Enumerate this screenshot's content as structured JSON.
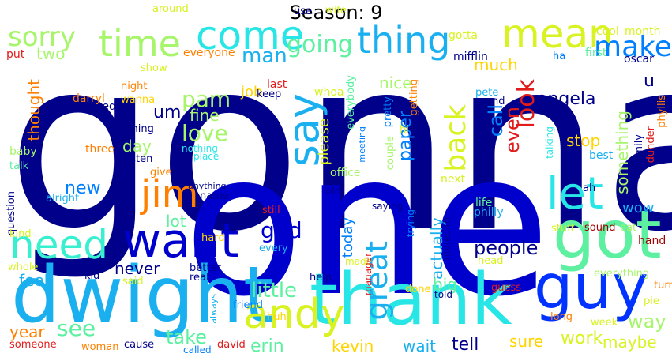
{
  "title": "Season: 9",
  "colors": {
    "navy": "#00008b",
    "blue": "#0000cd",
    "royal": "#0033ff",
    "azure": "#0080ff",
    "sky": "#1ab0f0",
    "cyan": "#29e6e6",
    "aqua": "#38f0d0",
    "mint": "#5cf0a0",
    "lime": "#a6f56b",
    "yellow": "#d9f221",
    "gold": "#ffd400",
    "orange": "#ff8000",
    "red": "#e21b1b",
    "darkred": "#a30000"
  },
  "words": [
    {
      "text": "gonna",
      "c": "navy"
    },
    {
      "text": "one",
      "c": "blue"
    },
    {
      "text": "dwight",
      "c": "sky"
    },
    {
      "text": "thank",
      "c": "cyan"
    },
    {
      "text": "got",
      "c": "mint"
    },
    {
      "text": "guy",
      "c": "royal"
    },
    {
      "text": "want",
      "c": "blue"
    },
    {
      "text": "andy",
      "c": "yellow"
    },
    {
      "text": "need",
      "c": "aqua"
    },
    {
      "text": "jim",
      "c": "orange"
    },
    {
      "text": "time",
      "c": "lime"
    },
    {
      "text": "come",
      "c": "cyan"
    },
    {
      "text": "mean",
      "c": "yellow"
    },
    {
      "text": "thing",
      "c": "sky"
    },
    {
      "text": "let",
      "c": "cyan"
    },
    {
      "text": "say",
      "c": "sky"
    },
    {
      "text": "sorry",
      "c": "lime"
    },
    {
      "text": "make",
      "c": "azure"
    },
    {
      "text": "great",
      "c": "sky"
    },
    {
      "text": "back",
      "c": "yellow"
    },
    {
      "text": "look",
      "c": "red"
    },
    {
      "text": "going",
      "c": "mint"
    },
    {
      "text": "pam",
      "c": "lime"
    },
    {
      "text": "love",
      "c": "lime"
    },
    {
      "text": "man",
      "c": "sky"
    },
    {
      "text": "god",
      "c": "blue"
    },
    {
      "text": "see",
      "c": "mint"
    },
    {
      "text": "little",
      "c": "mint"
    },
    {
      "text": "way",
      "c": "lime"
    },
    {
      "text": "people",
      "c": "navy"
    },
    {
      "text": "take",
      "c": "mint"
    },
    {
      "text": "work",
      "c": "yellow"
    },
    {
      "text": "kevin",
      "c": "gold"
    },
    {
      "text": "wait",
      "c": "sky"
    },
    {
      "text": "tell",
      "c": "navy"
    },
    {
      "text": "sure",
      "c": "gold"
    },
    {
      "text": "maybe",
      "c": "yellow"
    },
    {
      "text": "erin",
      "c": "mint"
    },
    {
      "text": "year",
      "c": "orange"
    },
    {
      "text": "feel",
      "c": "sky"
    },
    {
      "text": "never",
      "c": "navy"
    },
    {
      "text": "lot",
      "c": "mint"
    },
    {
      "text": "new",
      "c": "azure"
    },
    {
      "text": "day",
      "c": "lime"
    },
    {
      "text": "um",
      "c": "navy"
    },
    {
      "text": "fine",
      "c": "lime"
    },
    {
      "text": "call",
      "c": "azure"
    },
    {
      "text": "even",
      "c": "red"
    },
    {
      "text": "angela",
      "c": "navy"
    },
    {
      "text": "paper",
      "c": "azure"
    },
    {
      "text": "nice",
      "c": "lime"
    },
    {
      "text": "much",
      "c": "gold"
    },
    {
      "text": "two",
      "c": "lime"
    },
    {
      "text": "thought",
      "c": "orange"
    },
    {
      "text": "job",
      "c": "gold"
    },
    {
      "text": "u",
      "c": "navy"
    },
    {
      "text": "something",
      "c": "lime"
    },
    {
      "text": "stop",
      "c": "gold"
    },
    {
      "text": "wow",
      "c": "sky"
    },
    {
      "text": "big",
      "c": "mint"
    },
    {
      "text": "actually",
      "c": "sky"
    },
    {
      "text": "today",
      "c": "azure"
    },
    {
      "text": "please",
      "c": "yellow"
    },
    {
      "text": "darryl",
      "c": "orange"
    },
    {
      "text": "wanted",
      "c": "navy"
    },
    {
      "text": "three",
      "c": "orange"
    },
    {
      "text": "baby",
      "c": "lime"
    },
    {
      "text": "coming",
      "c": "navy"
    },
    {
      "text": "night",
      "c": "orange"
    },
    {
      "text": "wanna",
      "c": "gold"
    },
    {
      "text": "keep",
      "c": "navy"
    },
    {
      "text": "last",
      "c": "red"
    },
    {
      "text": "everyone",
      "c": "orange"
    },
    {
      "text": "put",
      "c": "red"
    },
    {
      "text": "show",
      "c": "yellow"
    },
    {
      "text": "around",
      "c": "yellow"
    },
    {
      "text": "use",
      "c": "navy"
    },
    {
      "text": "wife",
      "c": "yellow"
    },
    {
      "text": "gotta",
      "c": "yellow"
    },
    {
      "text": "mifflin",
      "c": "navy"
    },
    {
      "text": "first",
      "c": "mint"
    },
    {
      "text": "cool",
      "c": "yellow"
    },
    {
      "text": "month",
      "c": "yellow"
    },
    {
      "text": "oscar",
      "c": "navy"
    },
    {
      "text": "ha",
      "c": "azure"
    },
    {
      "text": "phyllis",
      "c": "orange"
    },
    {
      "text": "dunder",
      "c": "red"
    },
    {
      "text": "family",
      "c": "navy"
    },
    {
      "text": "best",
      "c": "sky"
    },
    {
      "text": "ah",
      "c": "navy"
    },
    {
      "text": "pete",
      "c": "sky"
    },
    {
      "text": "end",
      "c": "navy"
    },
    {
      "text": "getting",
      "c": "orange"
    },
    {
      "text": "pretty",
      "c": "azure"
    },
    {
      "text": "whoa",
      "c": "yellow"
    },
    {
      "text": "everybody",
      "c": "mint"
    },
    {
      "text": "hi",
      "c": "yellow"
    },
    {
      "text": "couple",
      "c": "lime"
    },
    {
      "text": "meeting",
      "c": "azure"
    },
    {
      "text": "talking",
      "c": "cyan"
    },
    {
      "text": "office",
      "c": "lime"
    },
    {
      "text": "next",
      "c": "yellow"
    },
    {
      "text": "life",
      "c": "mint"
    },
    {
      "text": "philly",
      "c": "sky"
    },
    {
      "text": "stuff",
      "c": "yellow"
    },
    {
      "text": "sound",
      "c": "darkred"
    },
    {
      "text": "eat",
      "c": "lime"
    },
    {
      "text": "hand",
      "c": "darkred"
    },
    {
      "text": "listen",
      "c": "navy"
    },
    {
      "text": "give",
      "c": "orange"
    },
    {
      "text": "nothing",
      "c": "cyan"
    },
    {
      "text": "place",
      "c": "cyan"
    },
    {
      "text": "talk",
      "c": "mint"
    },
    {
      "text": "question",
      "c": "navy"
    },
    {
      "text": "alright",
      "c": "sky"
    },
    {
      "text": "kind",
      "c": "yellow"
    },
    {
      "text": "whole",
      "c": "yellow"
    },
    {
      "text": "kid",
      "c": "navy"
    },
    {
      "text": "said",
      "c": "yellow"
    },
    {
      "text": "anything",
      "c": "navy"
    },
    {
      "text": "name",
      "c": "navy"
    },
    {
      "text": "hard",
      "c": "gold"
    },
    {
      "text": "better",
      "c": "navy"
    },
    {
      "text": "real",
      "c": "navy"
    },
    {
      "text": "friend",
      "c": "azure"
    },
    {
      "text": "huh",
      "c": "gold"
    },
    {
      "text": "help",
      "c": "navy"
    },
    {
      "text": "old",
      "c": "navy"
    },
    {
      "text": "still",
      "c": "red"
    },
    {
      "text": "every",
      "c": "sky"
    },
    {
      "text": "saying",
      "c": "navy"
    },
    {
      "text": "trying",
      "c": "azure"
    },
    {
      "text": "meredith",
      "c": "navy"
    },
    {
      "text": "made",
      "c": "yellow"
    },
    {
      "text": "manager",
      "c": "red"
    },
    {
      "text": "done",
      "c": "gold"
    },
    {
      "text": "told",
      "c": "navy"
    },
    {
      "text": "guess",
      "c": "red"
    },
    {
      "text": "head",
      "c": "yellow"
    },
    {
      "text": "long",
      "c": "orange"
    },
    {
      "text": "week",
      "c": "yellow"
    },
    {
      "text": "pie",
      "c": "yellow"
    },
    {
      "text": "turn",
      "c": "orange"
    },
    {
      "text": "everything",
      "c": "lime"
    },
    {
      "text": "always",
      "c": "sky"
    },
    {
      "text": "cause",
      "c": "navy"
    },
    {
      "text": "woman",
      "c": "orange"
    },
    {
      "text": "called",
      "c": "azure"
    },
    {
      "text": "david",
      "c": "red"
    },
    {
      "text": "someone",
      "c": "red"
    }
  ]
}
